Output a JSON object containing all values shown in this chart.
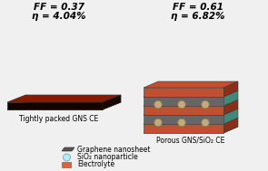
{
  "bg_color": "#f0f0f0",
  "left_title_line1": "FF = 0.37",
  "left_title_line2": "η = 4.04%",
  "right_title_line1": "FF = 0.61",
  "right_title_line2": "η = 6.82%",
  "left_label": "Tightly packed GNS CE",
  "right_label": "Porous GNS/SiO₂ CE",
  "legend_items": [
    {
      "label": "Graphene nanosheet",
      "color": "#555555",
      "type": "parallelogram"
    },
    {
      "label": "SiO₂ nanoparticle",
      "color": "#aaeeff",
      "type": "circle"
    },
    {
      "label": "Electrolyte",
      "color": "#e86030",
      "type": "square"
    }
  ],
  "left_top_color": "#8b1a00",
  "left_side_color": "#1a0800",
  "left_front_color": "#1a0800",
  "right_graphene_top": "#555555",
  "right_graphene_side": "#333333",
  "right_elec_color": "#c05030",
  "right_elec_light": "#d06040",
  "right_elec_side": "#8b3018",
  "right_teal_color": "#408878",
  "sio2_fill": "#c8a878",
  "sio2_edge": "#888866"
}
